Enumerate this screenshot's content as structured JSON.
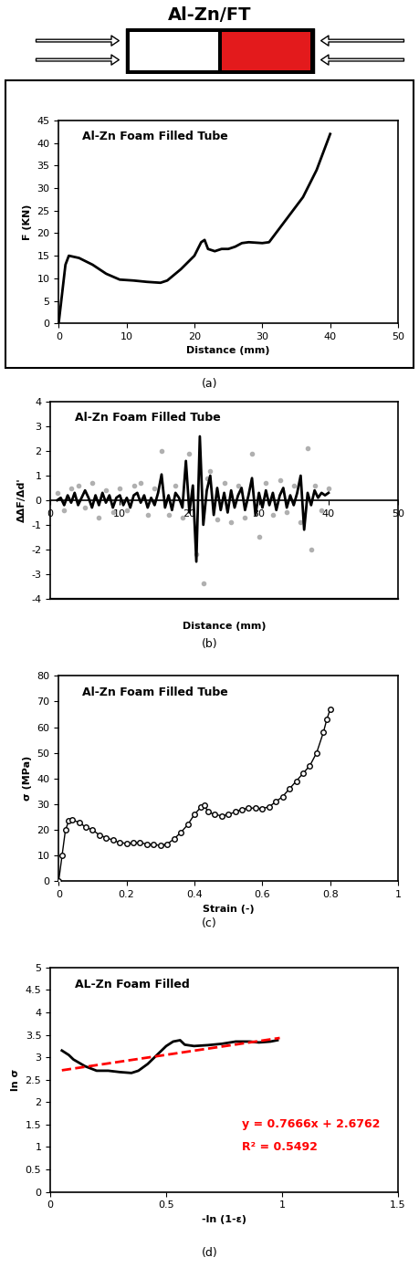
{
  "header": {
    "title": "Al-Zn/FT"
  },
  "chart_data": [
    {
      "type": "line",
      "caption": "(a)",
      "title": "Al-Zn Foam Filled Tube",
      "x_label": "Distance (mm)",
      "y_label": "F (KN)",
      "xlim": [
        0,
        50
      ],
      "xticks": [
        0,
        10,
        20,
        30,
        40,
        50
      ],
      "ylim": [
        0,
        45
      ],
      "yticks": [
        0,
        5,
        10,
        15,
        20,
        25,
        30,
        35,
        40,
        45
      ],
      "grid": false,
      "series": [
        {
          "type": "line",
          "color": "#000000",
          "line_style": "solid",
          "x": [
            0,
            1,
            1.5,
            3,
            5,
            7,
            9,
            11,
            13,
            15,
            16,
            18,
            20,
            21,
            21.5,
            22,
            23,
            24,
            25,
            26,
            27,
            28,
            30,
            31,
            32,
            34,
            36,
            38,
            39,
            40
          ],
          "values": [
            0,
            13,
            15,
            14.5,
            13,
            11,
            9.7,
            9.5,
            9.2,
            9,
            9.5,
            12,
            15,
            18,
            18.5,
            16.5,
            16,
            16.5,
            16.5,
            17,
            17.8,
            18,
            17.8,
            18,
            20,
            24,
            28,
            34,
            38,
            42
          ]
        }
      ]
    },
    {
      "type": "line",
      "caption": "(b)",
      "title": "Al-Zn Foam Filled Tube",
      "x_label": "Distance (mm)",
      "y_label": "ΔΔF/Δd'",
      "xlim": [
        0,
        50
      ],
      "xticks": [
        0,
        10,
        20,
        30,
        40,
        50
      ],
      "ylim": [
        -4,
        4
      ],
      "yticks": [
        -4,
        -3,
        -2,
        -1,
        0,
        1,
        2,
        3,
        4
      ],
      "grid": false,
      "series": [
        {
          "type": "scatter",
          "color": "#b0b0b0",
          "marker": "o",
          "x": [
            1,
            2,
            3,
            4,
            5,
            6,
            7,
            8,
            9,
            10,
            11,
            12,
            13,
            14,
            15,
            16,
            17,
            18,
            19,
            20,
            21,
            22,
            22.5,
            23,
            24,
            25,
            26,
            27,
            28,
            29,
            30,
            31,
            32,
            33,
            34,
            35,
            36,
            37,
            37.5,
            38,
            39,
            40
          ],
          "values": [
            0.3,
            -0.4,
            0.5,
            0.6,
            -0.3,
            0.7,
            -0.7,
            0.4,
            -0.5,
            0.5,
            -0.4,
            0.6,
            0.7,
            -0.6,
            0.5,
            2.0,
            -0.6,
            0.6,
            -0.7,
            1.9,
            -2.2,
            -3.4,
            0.9,
            1.2,
            -0.8,
            0.7,
            -0.9,
            0.6,
            -0.7,
            1.9,
            -1.5,
            0.7,
            -0.6,
            0.8,
            -0.5,
            0.6,
            -0.9,
            2.1,
            -2.0,
            0.6,
            -0.4,
            0.5
          ]
        },
        {
          "type": "line",
          "color": "#000000",
          "line_style": "solid",
          "x": [
            1,
            1.5,
            2,
            2.5,
            3,
            3.5,
            4,
            4.5,
            5,
            5.5,
            6,
            6.5,
            7,
            7.5,
            8,
            8.5,
            9,
            9.5,
            10,
            10.5,
            11,
            11.5,
            12,
            12.5,
            13,
            13.5,
            14,
            14.5,
            15,
            15.5,
            16,
            16.5,
            17,
            17.5,
            18,
            18.5,
            19,
            19.5,
            20,
            20.5,
            21,
            21.5,
            22,
            22.5,
            23,
            23.5,
            24,
            24.5,
            25,
            25.5,
            26,
            26.5,
            27,
            27.5,
            28,
            28.5,
            29,
            29.5,
            30,
            30.5,
            31,
            31.5,
            32,
            32.5,
            33,
            33.5,
            34,
            34.5,
            35,
            35.5,
            36,
            36.5,
            37,
            37.5,
            38,
            38.5,
            39,
            39.5,
            40
          ],
          "values": [
            0,
            0.1,
            -0.2,
            0.2,
            -0.1,
            0.3,
            -0.2,
            0.1,
            0.4,
            0.1,
            -0.3,
            0.2,
            -0.2,
            0.3,
            -0.1,
            0.2,
            -0.3,
            0.1,
            0.2,
            -0.2,
            0.1,
            -0.3,
            0.2,
            0.3,
            -0.1,
            0.2,
            -0.3,
            0.1,
            -0.2,
            0.3,
            1.05,
            -0.3,
            0.2,
            -0.4,
            0.3,
            0.1,
            -0.3,
            1.6,
            -0.5,
            0.6,
            -2.5,
            2.6,
            -1.0,
            0.4,
            1.0,
            -0.6,
            0.5,
            -0.4,
            0.3,
            -0.5,
            0.4,
            -0.3,
            0.2,
            0.5,
            -0.4,
            0.2,
            0.9,
            -0.6,
            0.3,
            -0.3,
            0.4,
            -0.2,
            0.3,
            -0.4,
            0.2,
            0.5,
            -0.3,
            0.2,
            -0.2,
            0.3,
            1.0,
            -1.2,
            0.3,
            -0.2,
            0.4,
            0.1,
            0.3,
            0.2,
            0.3
          ]
        }
      ]
    },
    {
      "type": "line",
      "caption": "(c)",
      "title": "Al-Zn Foam Filled Tube",
      "x_label": "Strain (-)",
      "y_label": "σ (MPa)",
      "xlim": [
        0,
        1
      ],
      "xticks": [
        0,
        0.2,
        0.4,
        0.6,
        0.8,
        1
      ],
      "ylim": [
        0,
        80
      ],
      "yticks": [
        0,
        10,
        20,
        30,
        40,
        50,
        60,
        70,
        80
      ],
      "grid": false,
      "series": [
        {
          "type": "line",
          "color": "#000000",
          "line_style": "solid",
          "marker": "o",
          "x": [
            0,
            0.01,
            0.02,
            0.03,
            0.04,
            0.06,
            0.08,
            0.1,
            0.12,
            0.14,
            0.16,
            0.18,
            0.2,
            0.22,
            0.24,
            0.26,
            0.28,
            0.3,
            0.32,
            0.34,
            0.36,
            0.38,
            0.4,
            0.42,
            0.43,
            0.44,
            0.46,
            0.48,
            0.5,
            0.52,
            0.54,
            0.56,
            0.58,
            0.6,
            0.62,
            0.64,
            0.66,
            0.68,
            0.7,
            0.72,
            0.74,
            0.76,
            0.78,
            0.79,
            0.8
          ],
          "values": [
            0,
            10,
            20,
            23.5,
            23.8,
            23,
            21,
            20,
            18,
            17,
            16,
            15,
            14.8,
            14.9,
            15,
            14.5,
            14.2,
            14,
            14.5,
            16.5,
            19,
            22,
            26,
            29,
            29.5,
            27,
            26,
            25.5,
            26,
            27,
            28,
            28.5,
            28.5,
            28.3,
            29,
            31,
            33,
            36,
            39,
            42,
            45,
            50,
            58,
            63,
            67
          ]
        }
      ]
    },
    {
      "type": "line",
      "caption": "(d)",
      "title": "AL-Zn Foam Filled",
      "x_label": "-ln (1-ε)",
      "y_label": "ln σ",
      "xlim": [
        0,
        1.5
      ],
      "xticks": [
        0,
        0.5,
        1,
        1.5
      ],
      "ylim": [
        0,
        5
      ],
      "yticks": [
        0,
        0.5,
        1,
        1.5,
        2,
        2.5,
        3,
        3.5,
        4,
        4.5,
        5
      ],
      "grid": false,
      "annotations": [
        "y = 0.7666x + 2.6762",
        "R² = 0.5492"
      ],
      "annotation_color": "#ff0000",
      "series": [
        {
          "type": "line",
          "color": "#000000",
          "line_style": "solid",
          "x": [
            0.05,
            0.08,
            0.1,
            0.15,
            0.2,
            0.25,
            0.3,
            0.35,
            0.38,
            0.42,
            0.46,
            0.5,
            0.53,
            0.56,
            0.58,
            0.62,
            0.68,
            0.74,
            0.8,
            0.86,
            0.9,
            0.95,
            0.98
          ],
          "values": [
            3.15,
            3.05,
            2.95,
            2.8,
            2.7,
            2.7,
            2.67,
            2.65,
            2.7,
            2.85,
            3.05,
            3.25,
            3.35,
            3.38,
            3.28,
            3.25,
            3.27,
            3.3,
            3.35,
            3.35,
            3.33,
            3.35,
            3.38
          ]
        },
        {
          "type": "line",
          "color": "#ff0000",
          "line_style": "dashed",
          "x": [
            0.05,
            0.99
          ],
          "values": [
            2.71,
            3.43
          ]
        }
      ]
    }
  ]
}
